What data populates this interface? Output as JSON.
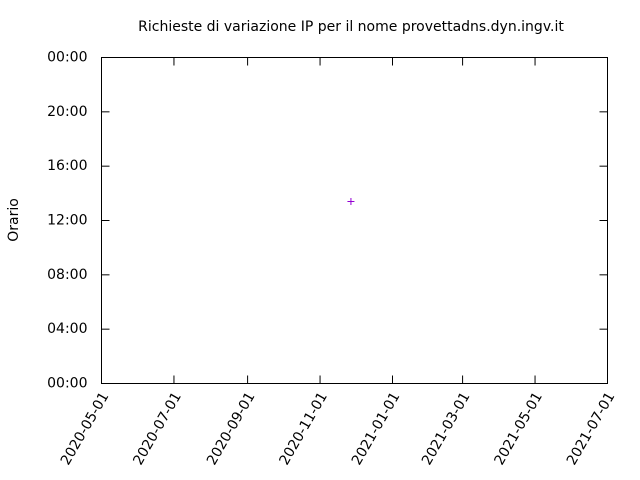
{
  "chart_data": {
    "type": "scatter",
    "title": "Richieste di variazione IP per il nome provettadns.dyn.ingv.it",
    "y_label": "Orario",
    "x": [
      "2020-11-27"
    ],
    "values": [
      13.4
    ],
    "color": "#9400d3",
    "marker": "+",
    "xlim": [
      "2020-05-01",
      "2021-07-01"
    ],
    "xticks": [
      "2020-05-01",
      "2020-07-01",
      "2020-09-01",
      "2020-11-01",
      "2021-01-01",
      "2021-03-01",
      "2021-05-01",
      "2021-07-01"
    ],
    "ylim": [
      0,
      24
    ],
    "yticks": [
      {
        "value": 0,
        "label": "00:00"
      },
      {
        "value": 4,
        "label": "04:00"
      },
      {
        "value": 8,
        "label": "08:00"
      },
      {
        "value": 12,
        "label": "12:00"
      },
      {
        "value": 16,
        "label": "16:00"
      },
      {
        "value": 20,
        "label": "20:00"
      },
      {
        "value": 24,
        "label": "00:00"
      }
    ],
    "grid": false
  }
}
